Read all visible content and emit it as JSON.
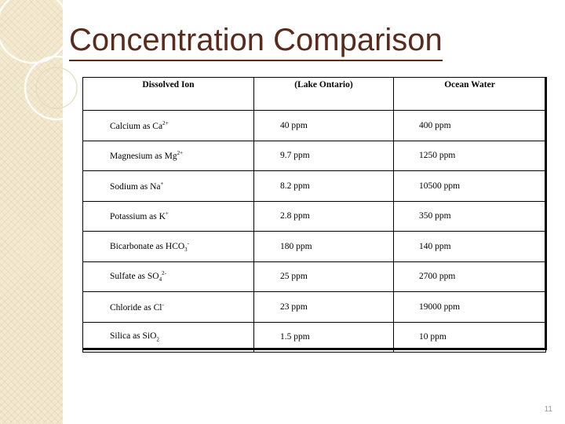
{
  "title": "Concentration Comparison",
  "page_number": "11",
  "colors": {
    "title": "#5a2a1a",
    "side_strip": "#f3ead1",
    "page_number": "#9a9a9a"
  },
  "table": {
    "headers": [
      "Dissolved Ion",
      "(Lake Ontario)",
      "Ocean Water"
    ],
    "rows": [
      {
        "ion": "Calcium as Ca",
        "ion_sup": "2+",
        "ion_sub": "",
        "lake": "40 ppm",
        "ocean": "400 ppm"
      },
      {
        "ion": "Magnesium as Mg",
        "ion_sup": "2+",
        "ion_sub": "",
        "lake": "9.7 ppm",
        "ocean": "1250 ppm"
      },
      {
        "ion": "Sodium as Na",
        "ion_sup": "+",
        "ion_sub": "",
        "lake": "8.2 ppm",
        "ocean": "10500 ppm"
      },
      {
        "ion": "Potassium as K",
        "ion_sup": "+",
        "ion_sub": "",
        "lake": "2.8 ppm",
        "ocean": "350 ppm"
      },
      {
        "ion": "Bicarbonate as HCO",
        "ion_sub": "3",
        "ion_sup": "-",
        "lake": "180 ppm",
        "ocean": "140 ppm"
      },
      {
        "ion": "Sulfate as SO",
        "ion_sub": "4",
        "ion_sup": "2-",
        "lake": "25 ppm",
        "ocean": "2700 ppm"
      },
      {
        "ion": "Chloride as Cl",
        "ion_sub": "",
        "ion_sup": "-",
        "lake": "23 ppm",
        "ocean": "19000 ppm"
      },
      {
        "ion": "Silica as SiO",
        "ion_sub": "2",
        "ion_sup": "",
        "lake": "1.5 ppm",
        "ocean": "10 ppm"
      }
    ]
  }
}
